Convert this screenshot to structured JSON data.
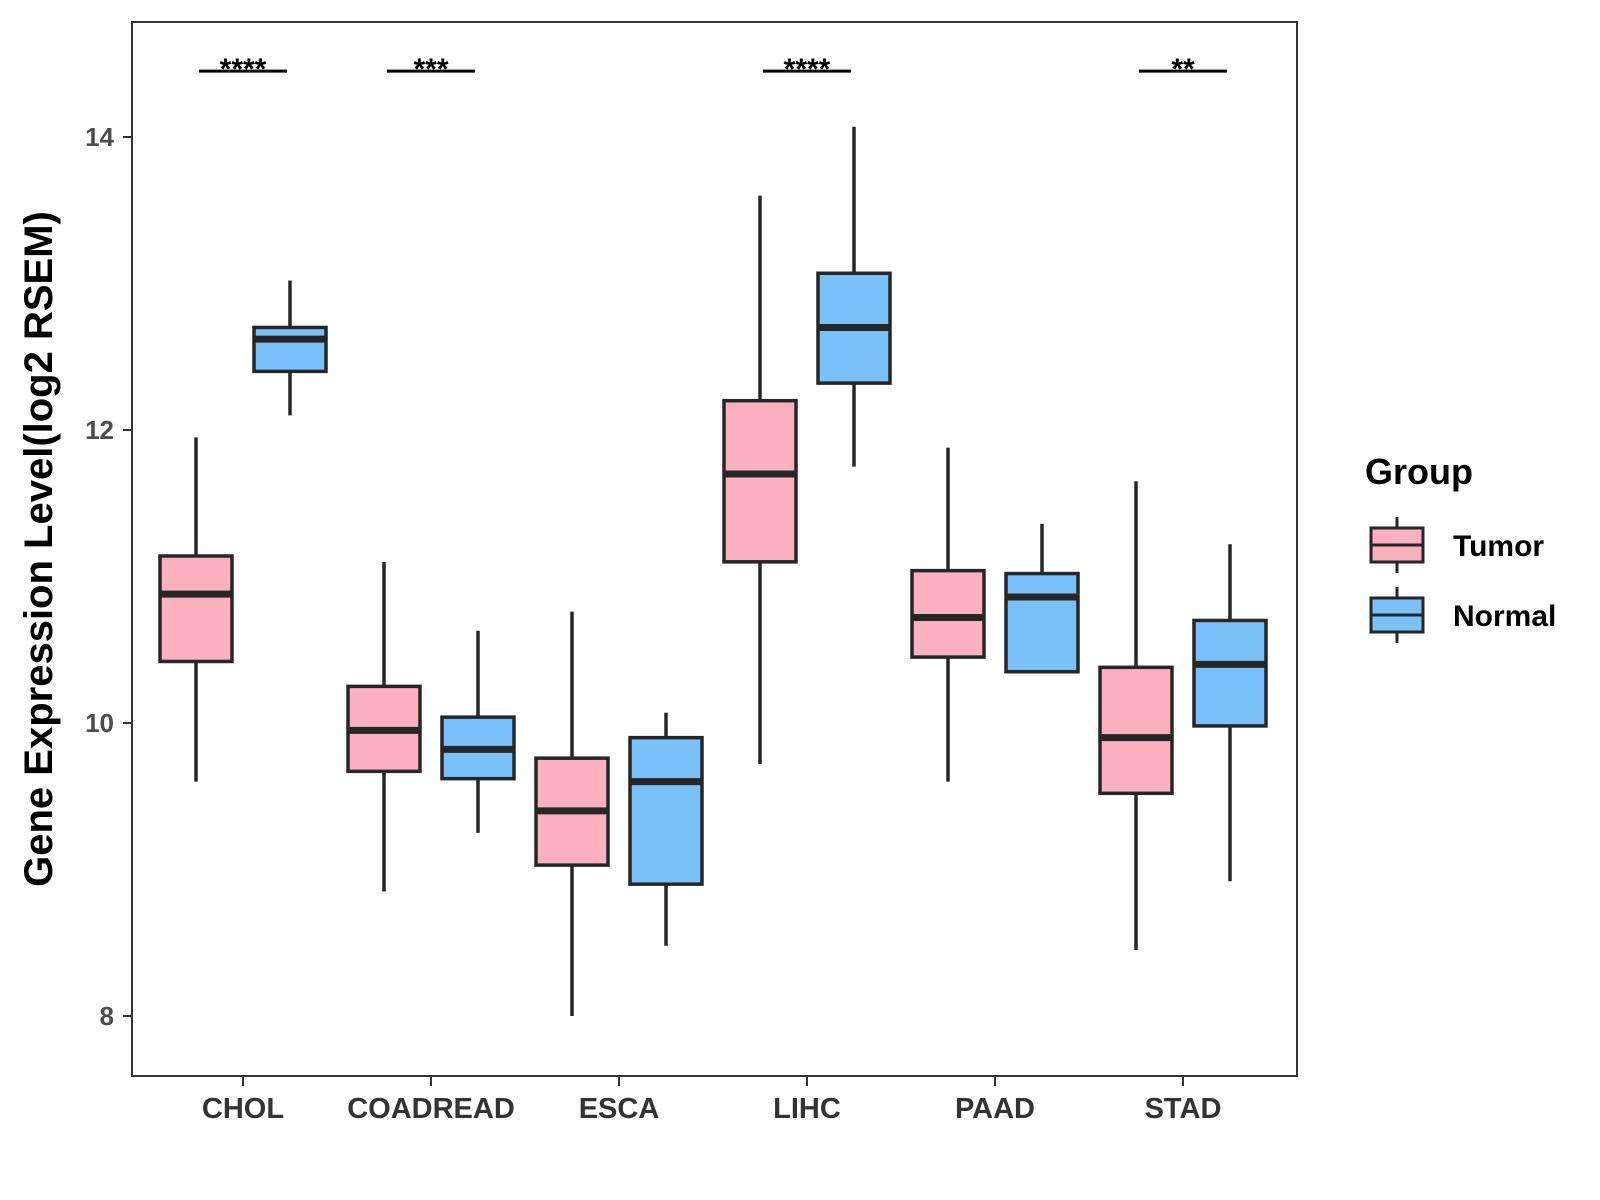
{
  "chart_data": {
    "type": "box",
    "title": "",
    "xlabel": "",
    "ylabel": "Gene Expression Level(log2 RSEM)",
    "ylim": [
      7.6,
      14.8
    ],
    "yticks": [
      8,
      10,
      12,
      14
    ],
    "categories": [
      "CHOL",
      "COADREAD",
      "ESCA",
      "LIHC",
      "PAAD",
      "STAD"
    ],
    "legend": {
      "title": "Group",
      "position": "right",
      "entries": [
        "Tumor",
        "Normal"
      ]
    },
    "series": [
      {
        "name": "Tumor",
        "color": "#FBB0C0",
        "boxes": [
          {
            "min": 9.6,
            "q1": 10.42,
            "median": 10.88,
            "q3": 11.14,
            "max": 11.95
          },
          {
            "min": 8.85,
            "q1": 9.67,
            "median": 9.95,
            "q3": 10.25,
            "max": 11.1
          },
          {
            "min": 8.0,
            "q1": 9.03,
            "median": 9.4,
            "q3": 9.76,
            "max": 10.76
          },
          {
            "min": 9.72,
            "q1": 11.1,
            "median": 11.7,
            "q3": 12.2,
            "max": 13.6
          },
          {
            "min": 9.6,
            "q1": 10.45,
            "median": 10.72,
            "q3": 11.04,
            "max": 11.88
          },
          {
            "min": 8.45,
            "q1": 9.52,
            "median": 9.9,
            "q3": 10.38,
            "max": 11.65
          }
        ]
      },
      {
        "name": "Normal",
        "color": "#79C1F8",
        "boxes": [
          {
            "min": 12.1,
            "q1": 12.4,
            "median": 12.62,
            "q3": 12.7,
            "max": 13.02
          },
          {
            "min": 9.25,
            "q1": 9.62,
            "median": 9.82,
            "q3": 10.04,
            "max": 10.63
          },
          {
            "min": 8.48,
            "q1": 8.9,
            "median": 9.6,
            "q3": 9.9,
            "max": 10.07
          },
          {
            "min": 11.75,
            "q1": 12.32,
            "median": 12.7,
            "q3": 13.07,
            "max": 14.07
          },
          {
            "min": null,
            "q1": 10.35,
            "median": 10.86,
            "q3": 11.02,
            "max": 11.36
          },
          {
            "min": 8.92,
            "q1": 9.98,
            "median": 10.4,
            "q3": 10.7,
            "max": 11.22
          }
        ]
      }
    ],
    "significance": [
      "****",
      "***",
      "",
      "****",
      "",
      "**"
    ],
    "significance_level": 14.45
  }
}
